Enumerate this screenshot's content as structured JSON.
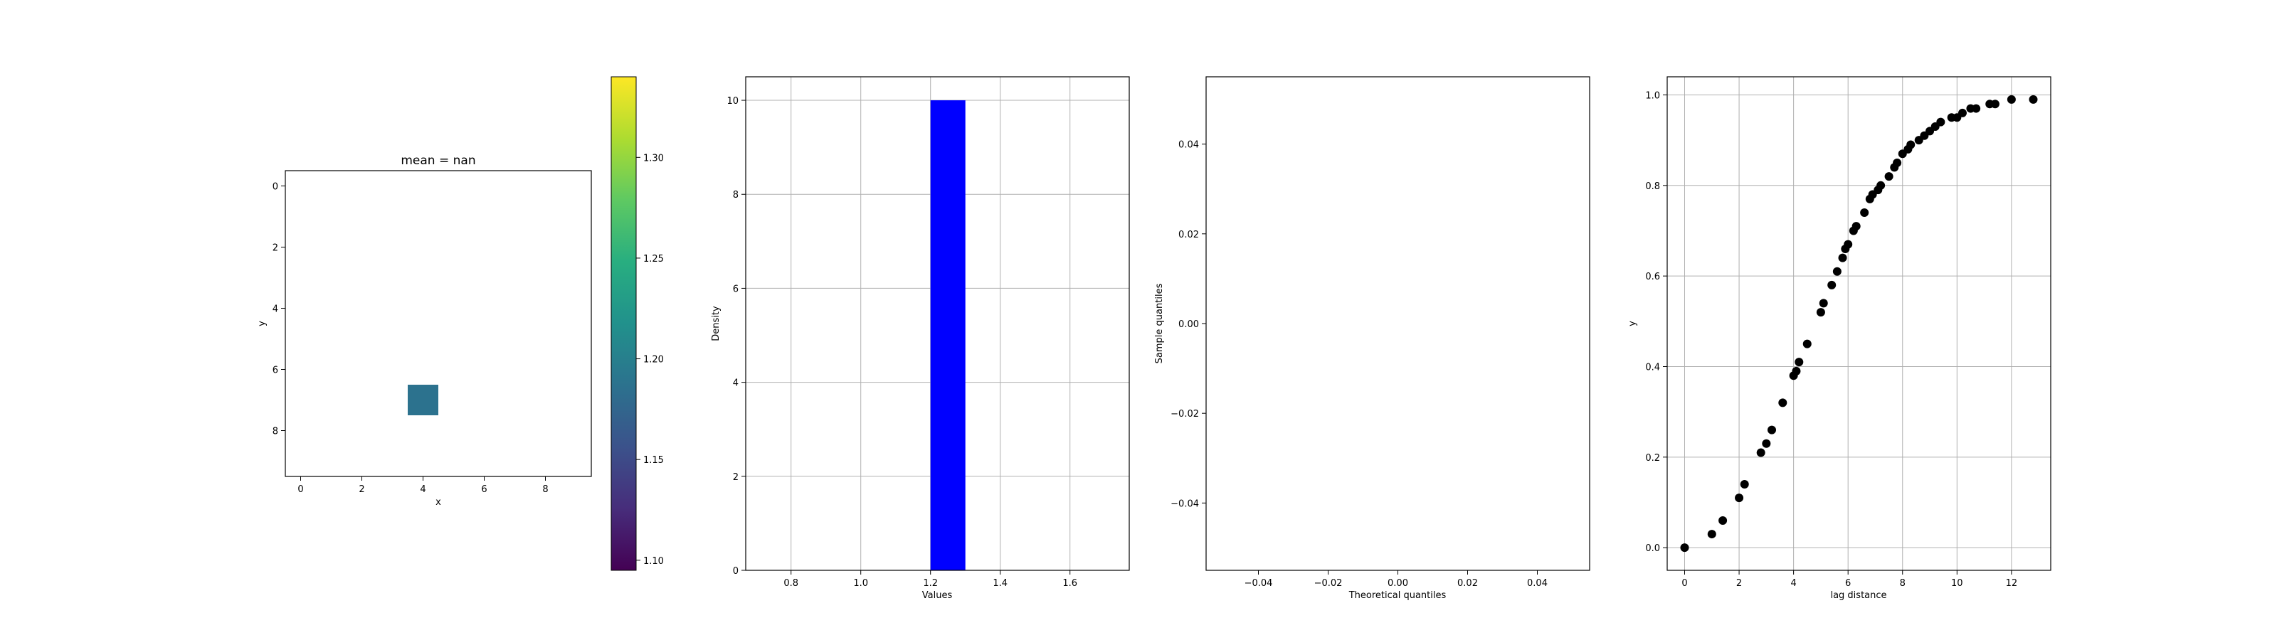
{
  "chart_data": [
    {
      "type": "heatmap",
      "title": "mean = nan",
      "xlabel": "x",
      "ylabel": "y",
      "x_ticks": [
        0,
        2,
        4,
        6,
        8
      ],
      "y_ticks": [
        0,
        2,
        4,
        6,
        8
      ],
      "grid_size": [
        10,
        10
      ],
      "cells": [
        {
          "x": 4,
          "y": 7,
          "value": 1.2
        }
      ],
      "colorbar": {
        "colormap": "viridis",
        "vmin": 1.095,
        "vmax": 1.34,
        "ticks": [
          "1.10",
          "1.15",
          "1.20",
          "1.25",
          "1.30"
        ]
      },
      "xlim": [
        -0.5,
        9.5
      ],
      "ylim": [
        -0.5,
        9.5
      ],
      "grid": false
    },
    {
      "type": "bar",
      "xlabel": "Values",
      "ylabel": "Density",
      "bins": [
        {
          "x0": 1.2,
          "x1": 1.3,
          "value": 10
        }
      ],
      "xlim": [
        0.67,
        1.77
      ],
      "ylim": [
        0,
        10.5
      ],
      "x_ticks": [
        "0.8",
        "1.0",
        "1.2",
        "1.4",
        "1.6"
      ],
      "y_ticks": [
        "0",
        "2",
        "4",
        "6",
        "8",
        "10"
      ],
      "color": "#0000ff",
      "grid": true
    },
    {
      "type": "scatter",
      "xlabel": "Theoretical quantiles",
      "ylabel": "Sample quantiles",
      "points": [],
      "xlim": [
        -0.055,
        0.055
      ],
      "ylim": [
        -0.055,
        0.055
      ],
      "x_ticks": [
        "−0.04",
        "−0.02",
        "0.00",
        "0.02",
        "0.04"
      ],
      "y_ticks": [
        "−0.04",
        "−0.02",
        "0.00",
        "0.02",
        "0.04"
      ],
      "grid": true
    },
    {
      "type": "scatter",
      "xlabel": "lag distance",
      "ylabel": "y",
      "x_ticks": [
        "0",
        "2",
        "4",
        "6",
        "8",
        "10",
        "12"
      ],
      "y_ticks": [
        "0.0",
        "0.2",
        "0.4",
        "0.6",
        "0.8",
        "1.0"
      ],
      "xlim": [
        -0.64,
        13.44
      ],
      "ylim": [
        -0.05,
        1.04
      ],
      "color": "#000000",
      "grid": true,
      "x": [
        0,
        1,
        1.4,
        2.0,
        2.2,
        2.8,
        3.0,
        3.2,
        3.6,
        4.0,
        4.1,
        4.2,
        4.5,
        5.0,
        5.1,
        5.4,
        5.6,
        5.8,
        5.9,
        6.0,
        6.2,
        6.3,
        6.6,
        6.8,
        6.9,
        7.1,
        7.2,
        7.5,
        7.7,
        7.8,
        8.0,
        8.2,
        8.3,
        8.6,
        8.8,
        9.0,
        9.2,
        9.4,
        9.8,
        10.0,
        10.2,
        10.5,
        10.7,
        11.2,
        11.4,
        12.0,
        12.8
      ],
      "y": [
        0.0,
        0.03,
        0.06,
        0.11,
        0.14,
        0.21,
        0.23,
        0.26,
        0.32,
        0.38,
        0.39,
        0.41,
        0.45,
        0.52,
        0.54,
        0.58,
        0.61,
        0.64,
        0.66,
        0.67,
        0.7,
        0.71,
        0.74,
        0.77,
        0.78,
        0.79,
        0.8,
        0.82,
        0.84,
        0.85,
        0.87,
        0.88,
        0.89,
        0.9,
        0.91,
        0.92,
        0.93,
        0.94,
        0.95,
        0.95,
        0.96,
        0.97,
        0.97,
        0.98,
        0.98,
        0.99,
        0.99
      ]
    }
  ]
}
